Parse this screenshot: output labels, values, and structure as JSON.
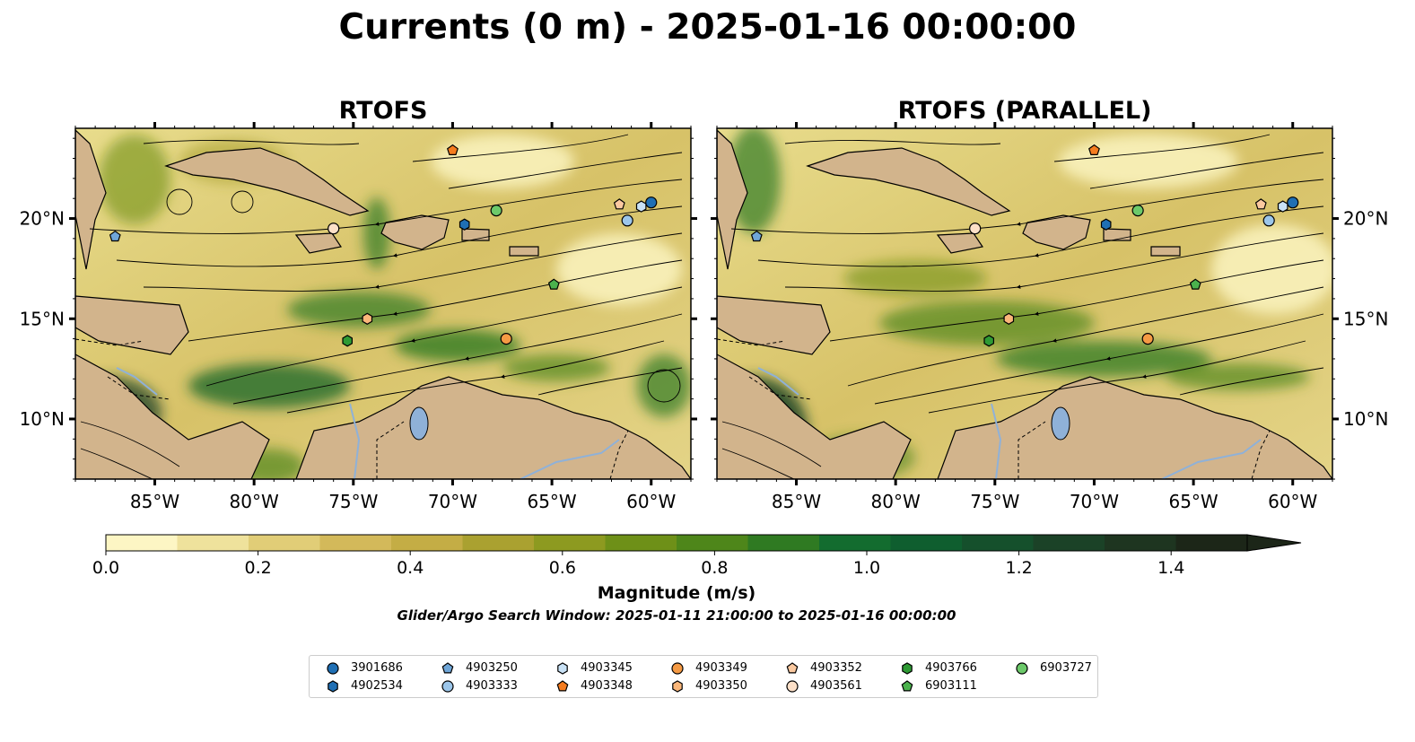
{
  "title": "Currents (0 m) - 2025-01-16 00:00:00",
  "panels": [
    {
      "title": "RTOFS"
    },
    {
      "title": "RTOFS (PARALLEL)"
    }
  ],
  "lon_ticks": [
    "85°W",
    "80°W",
    "75°W",
    "70°W",
    "65°W",
    "60°W"
  ],
  "lat_ticks": [
    "20°N",
    "15°N",
    "10°N"
  ],
  "map_extent": {
    "lon": [
      -89.0,
      -58.0
    ],
    "lat": [
      7.0,
      24.5
    ]
  },
  "colorbar": {
    "label": "Magnitude (m/s)",
    "ticks": [
      "0.0",
      "0.2",
      "0.4",
      "0.6",
      "0.8",
      "1.0",
      "1.2",
      "1.4"
    ],
    "range": [
      0.0,
      1.5
    ],
    "extend": "max",
    "colors": [
      "#fdf6c4",
      "#efe29c",
      "#e1cd77",
      "#d3b95a",
      "#c4ad45",
      "#aaa130",
      "#8d9a20",
      "#6e9018",
      "#4e861a",
      "#2f7a22",
      "#136c2f",
      "#0f5e2f",
      "#15502c",
      "#1b4227",
      "#1e3520",
      "#1c2618"
    ]
  },
  "search_window": "Glider/Argo Search Window: 2025-01-11 21:00:00 to 2025-01-16 00:00:00",
  "legend": [
    {
      "id": "3901686",
      "marker": "circle",
      "color": "#1f6fb4"
    },
    {
      "id": "4902534",
      "marker": "hexagon",
      "color": "#1f6fb4"
    },
    {
      "id": "4903250",
      "marker": "pentagon",
      "color": "#6fa6d8"
    },
    {
      "id": "4903333",
      "marker": "circle",
      "color": "#9cc6ea"
    },
    {
      "id": "4903345",
      "marker": "hexagon",
      "color": "#c9e2f6"
    },
    {
      "id": "4903348",
      "marker": "pentagon",
      "color": "#f57c1f"
    },
    {
      "id": "4903349",
      "marker": "circle",
      "color": "#f59a44"
    },
    {
      "id": "4903350",
      "marker": "hexagon",
      "color": "#fbb77a"
    },
    {
      "id": "4903352",
      "marker": "pentagon",
      "color": "#fbc9a0"
    },
    {
      "id": "4903561",
      "marker": "circle",
      "color": "#fde0c8"
    },
    {
      "id": "4903766",
      "marker": "hexagon",
      "color": "#2e9a34"
    },
    {
      "id": "6903111",
      "marker": "pentagon",
      "color": "#4bb24d"
    },
    {
      "id": "6903727",
      "marker": "circle",
      "color": "#6cc96a"
    }
  ],
  "floats": [
    {
      "id": "4903348",
      "lon": -70.0,
      "lat": 23.4
    },
    {
      "id": "3901686",
      "lon": -60.0,
      "lat": 20.8
    },
    {
      "id": "4903345",
      "lon": -60.5,
      "lat": 20.6
    },
    {
      "id": "4903352",
      "lon": -61.6,
      "lat": 20.7
    },
    {
      "id": "4903333",
      "lon": -61.2,
      "lat": 19.9
    },
    {
      "id": "6903727",
      "lon": -67.8,
      "lat": 20.4
    },
    {
      "id": "4902534",
      "lon": -69.4,
      "lat": 19.7
    },
    {
      "id": "4903561",
      "lon": -76.0,
      "lat": 19.5
    },
    {
      "id": "4903250",
      "lon": -87.0,
      "lat": 19.1
    },
    {
      "id": "6903111",
      "lon": -64.9,
      "lat": 16.7
    },
    {
      "id": "4903350",
      "lon": -74.3,
      "lat": 15.0
    },
    {
      "id": "4903766",
      "lon": -75.3,
      "lat": 13.9
    },
    {
      "id": "4903349",
      "lon": -67.3,
      "lat": 14.0
    }
  ]
}
